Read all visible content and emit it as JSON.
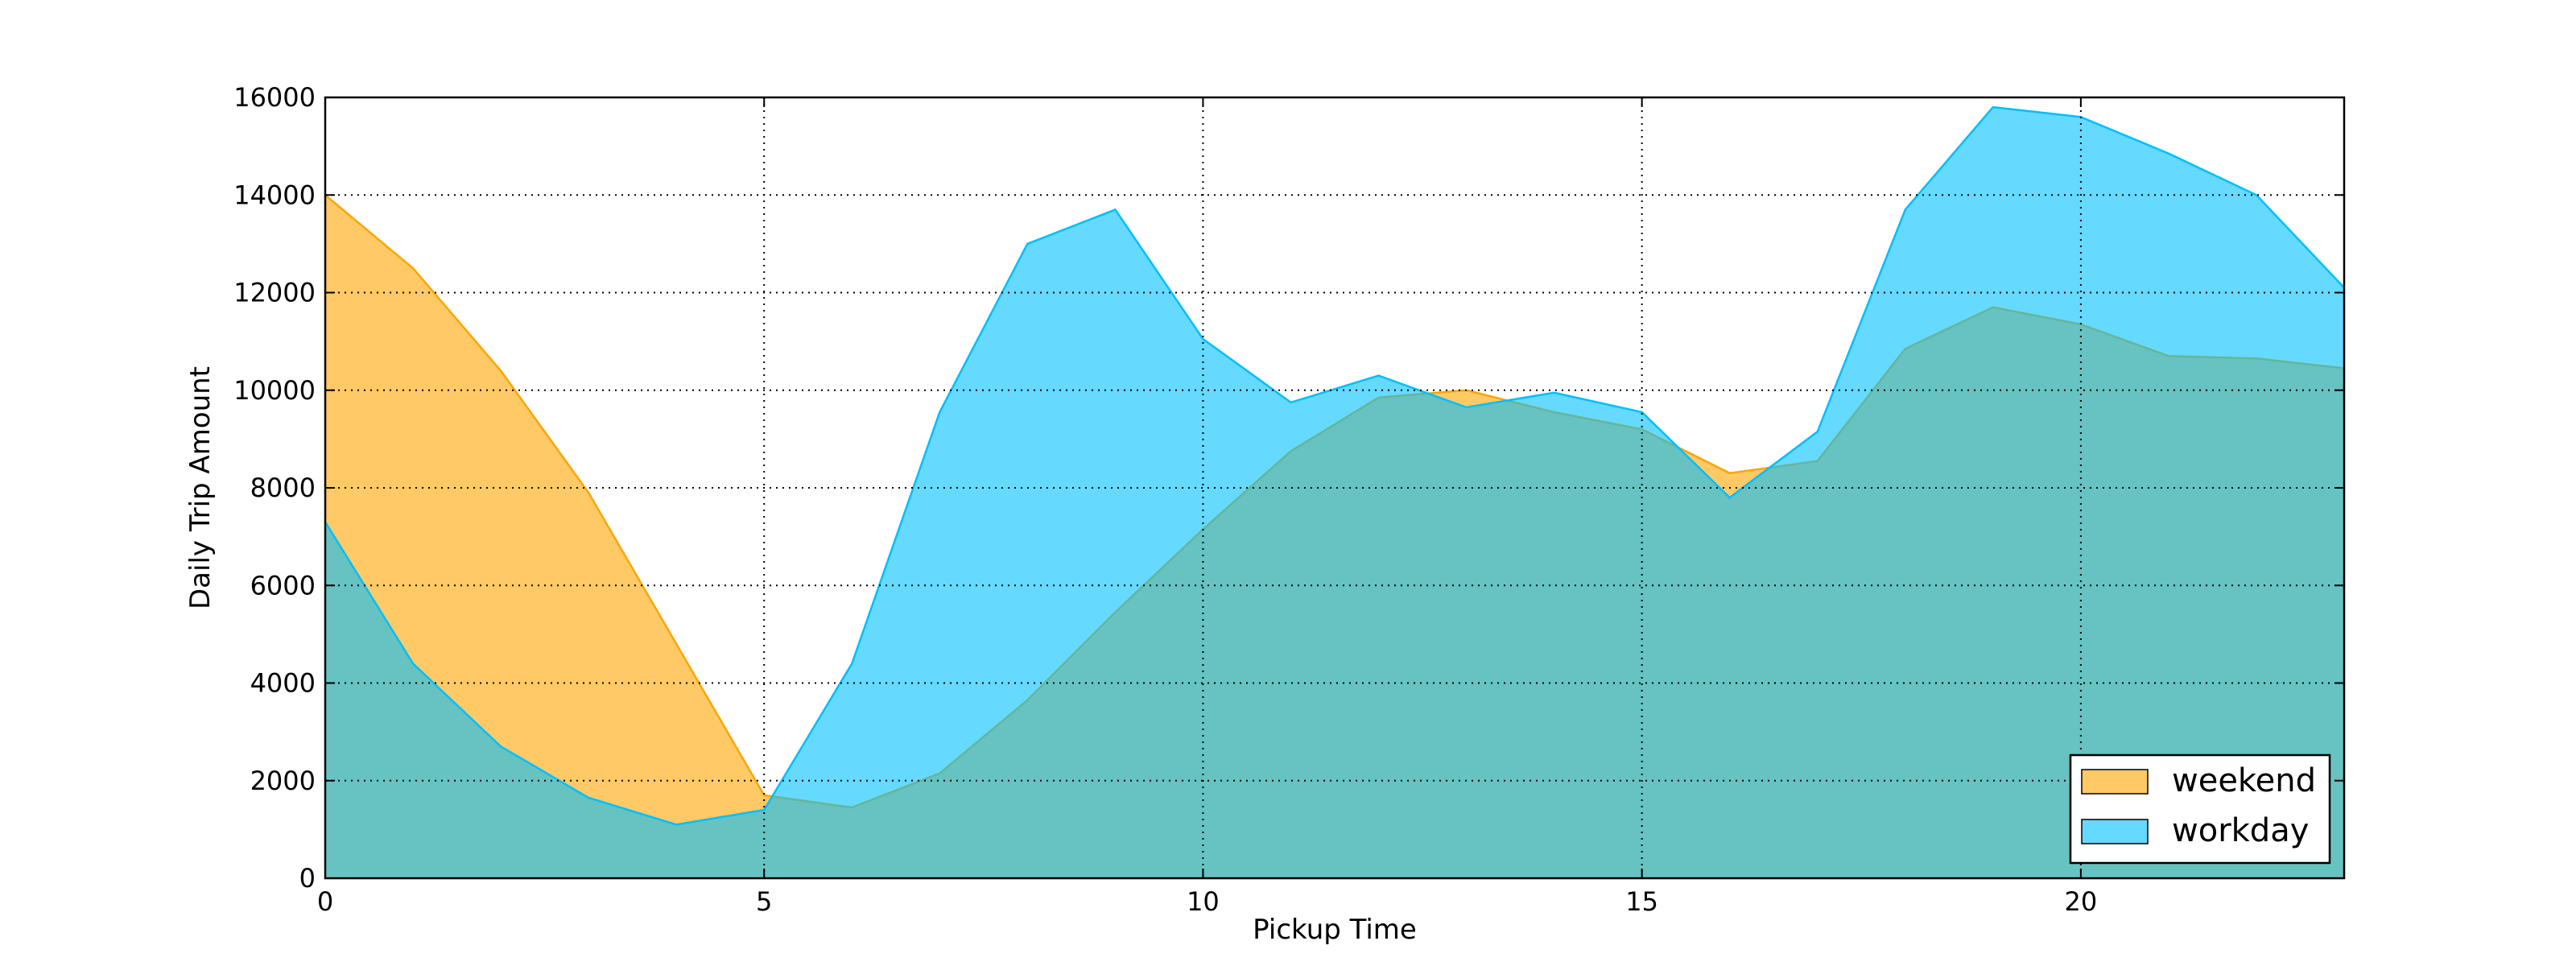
{
  "chart_data": {
    "type": "area",
    "title": "",
    "xlabel": "Pickup Time",
    "ylabel": "Daily Trip Amount",
    "xlim": [
      0,
      23
    ],
    "ylim": [
      0,
      16000
    ],
    "xticks": [
      0,
      5,
      10,
      15,
      20
    ],
    "yticks": [
      0,
      2000,
      4000,
      6000,
      8000,
      10000,
      12000,
      14000,
      16000
    ],
    "grid": true,
    "legend_position": "lower right",
    "x": [
      0,
      1,
      2,
      3,
      4,
      5,
      6,
      7,
      8,
      9,
      10,
      11,
      12,
      13,
      14,
      15,
      16,
      17,
      18,
      19,
      20,
      21,
      22,
      23
    ],
    "series": [
      {
        "name": "weekend",
        "color": "#ffa500",
        "values": [
          14000,
          12500,
          10400,
          7900,
          4800,
          1700,
          1450,
          2150,
          3650,
          5450,
          7150,
          8750,
          9850,
          10000,
          9550,
          9200,
          8300,
          8550,
          10850,
          11700,
          11350,
          10700,
          10650,
          10450
        ]
      },
      {
        "name": "workday",
        "color": "#00bfff",
        "values": [
          7300,
          4400,
          2700,
          1650,
          1100,
          1400,
          4400,
          9550,
          13000,
          13700,
          11050,
          9750,
          10300,
          9650,
          9950,
          9550,
          7800,
          9150,
          13700,
          15800,
          15600,
          14850,
          14000,
          12100
        ]
      }
    ]
  }
}
